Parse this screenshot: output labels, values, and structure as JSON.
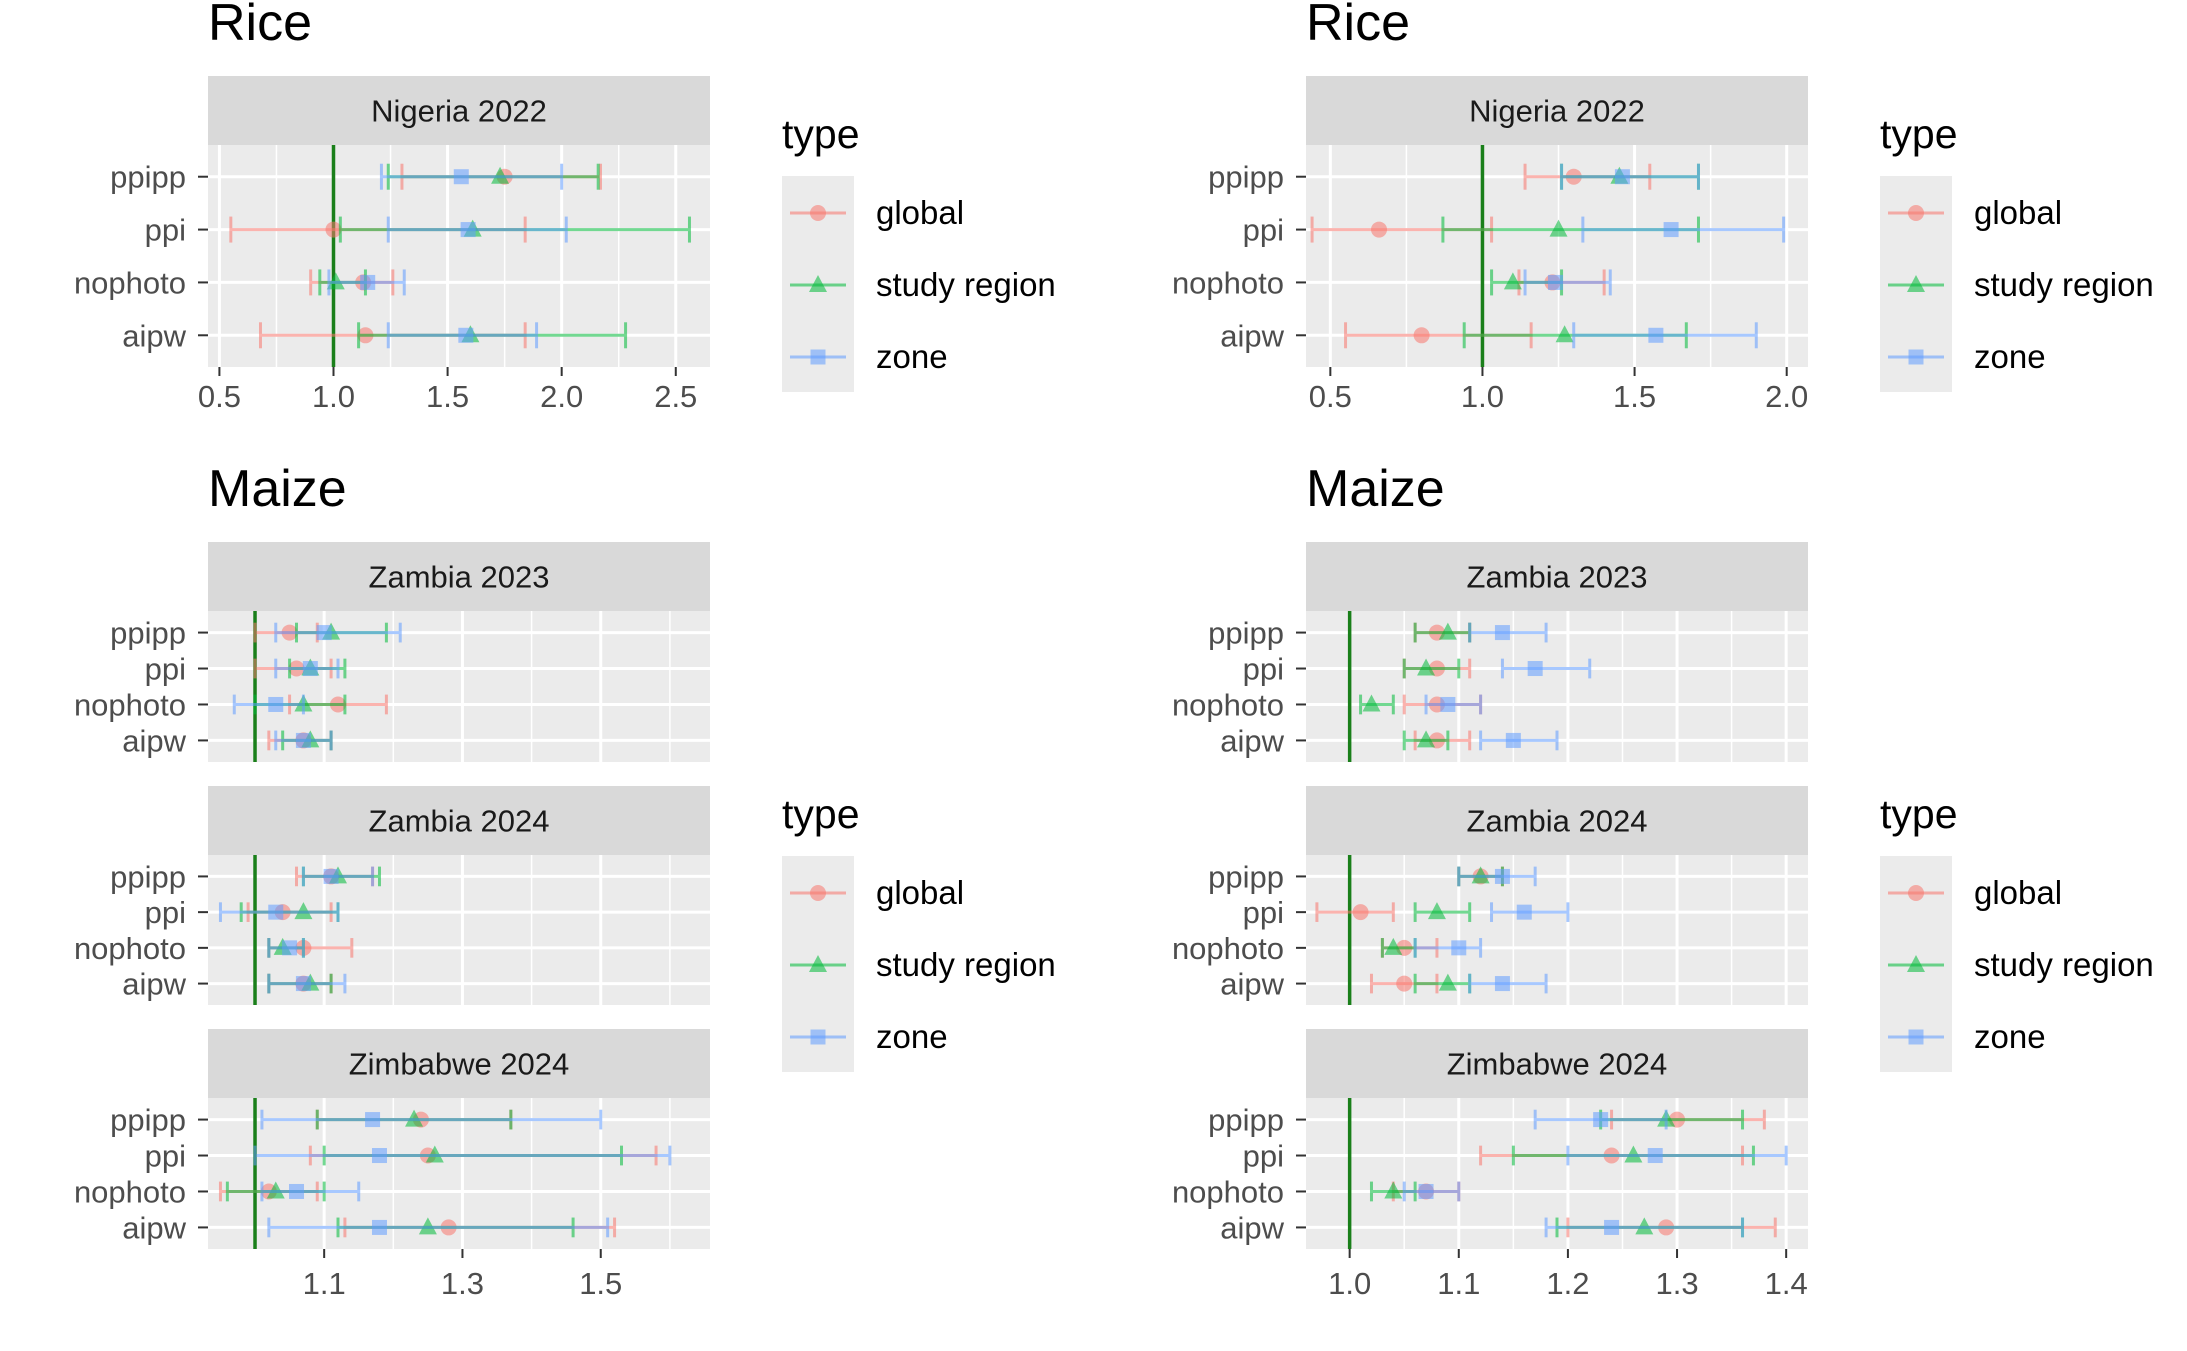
{
  "chart_data": [
    {
      "type": "forest",
      "title": "Rice",
      "legend": {
        "title": "type",
        "placement": "right"
      },
      "series": [
        {
          "name": "global",
          "color": "#F8766D",
          "marker": "circle"
        },
        {
          "name": "study region",
          "color": "#00BA38",
          "marker": "triangle"
        },
        {
          "name": "zone",
          "color": "#619CFF",
          "marker": "square"
        }
      ],
      "reference_line": 1.0,
      "xlim": [
        0.45,
        2.65
      ],
      "xticks": [
        0.5,
        1.0,
        1.5,
        2.0,
        2.5
      ],
      "xtick_labels": [
        "0.5",
        "1.0",
        "1.5",
        "2.0",
        "2.5"
      ],
      "categories": [
        "ppipp",
        "ppi",
        "nophoto",
        "aipw"
      ],
      "facets": [
        {
          "label": "Nigeria 2022",
          "rows": {
            "ppipp": {
              "global": [
                1.3,
                1.75,
                2.17
              ],
              "study region": [
                1.24,
                1.73,
                2.16
              ],
              "zone": [
                1.21,
                1.56,
                2.0
              ]
            },
            "ppi": {
              "global": [
                0.55,
                1.0,
                1.84
              ],
              "study region": [
                1.03,
                1.61,
                2.56
              ],
              "zone": [
                1.24,
                1.59,
                2.02
              ]
            },
            "nophoto": {
              "global": [
                0.9,
                1.13,
                1.26
              ],
              "study region": [
                0.94,
                1.01,
                1.14
              ],
              "zone": [
                0.98,
                1.15,
                1.31
              ]
            },
            "aipw": {
              "global": [
                0.68,
                1.14,
                1.84
              ],
              "study region": [
                1.11,
                1.6,
                2.28
              ],
              "zone": [
                1.24,
                1.58,
                1.89
              ]
            }
          }
        }
      ]
    },
    {
      "type": "forest",
      "title": "Rice",
      "legend": {
        "title": "type",
        "placement": "right"
      },
      "series": [
        {
          "name": "global",
          "color": "#F8766D",
          "marker": "circle"
        },
        {
          "name": "study region",
          "color": "#00BA38",
          "marker": "triangle"
        },
        {
          "name": "zone",
          "color": "#619CFF",
          "marker": "square"
        }
      ],
      "reference_line": 1.0,
      "xlim": [
        0.42,
        2.07
      ],
      "xticks": [
        0.5,
        1.0,
        1.5,
        2.0
      ],
      "xtick_labels": [
        "0.5",
        "1.0",
        "1.5",
        "2.0"
      ],
      "categories": [
        "ppipp",
        "ppi",
        "nophoto",
        "aipw"
      ],
      "facets": [
        {
          "label": "Nigeria 2022",
          "rows": {
            "ppipp": {
              "global": [
                1.14,
                1.3,
                1.55
              ],
              "study region": [
                1.26,
                1.45,
                1.71
              ],
              "zone": [
                1.26,
                1.46,
                1.71
              ]
            },
            "ppi": {
              "global": [
                0.44,
                0.66,
                1.03
              ],
              "study region": [
                0.87,
                1.25,
                1.71
              ],
              "zone": [
                1.33,
                1.62,
                1.99
              ]
            },
            "nophoto": {
              "global": [
                1.12,
                1.23,
                1.4
              ],
              "study region": [
                1.03,
                1.1,
                1.26
              ],
              "zone": [
                1.14,
                1.24,
                1.42
              ]
            },
            "aipw": {
              "global": [
                0.55,
                0.8,
                1.16
              ],
              "study region": [
                0.94,
                1.27,
                1.67
              ],
              "zone": [
                1.3,
                1.57,
                1.9
              ]
            }
          }
        }
      ]
    },
    {
      "type": "forest",
      "title": "Maize",
      "legend": {
        "title": "type",
        "placement": "right"
      },
      "series": [
        {
          "name": "global",
          "color": "#F8766D",
          "marker": "circle"
        },
        {
          "name": "study region",
          "color": "#00BA38",
          "marker": "triangle"
        },
        {
          "name": "zone",
          "color": "#619CFF",
          "marker": "square"
        }
      ],
      "reference_line": 1.0,
      "xlim": [
        0.932,
        1.658
      ],
      "xticks": [
        1.1,
        1.3,
        1.5
      ],
      "xtick_labels": [
        "1.1",
        "1.3",
        "1.5"
      ],
      "categories": [
        "ppipp",
        "ppi",
        "nophoto",
        "aipw"
      ],
      "facets": [
        {
          "label": "Zambia 2023",
          "rows": {
            "ppipp": {
              "global": [
                1.0,
                1.05,
                1.09
              ],
              "study region": [
                1.06,
                1.11,
                1.19
              ],
              "zone": [
                1.03,
                1.1,
                1.21
              ]
            },
            "ppi": {
              "global": [
                1.0,
                1.06,
                1.11
              ],
              "study region": [
                1.05,
                1.08,
                1.13
              ],
              "zone": [
                1.03,
                1.08,
                1.12
              ]
            },
            "nophoto": {
              "global": [
                1.05,
                1.12,
                1.19
              ],
              "study region": [
                1.0,
                1.07,
                1.13
              ],
              "zone": [
                0.97,
                1.03,
                1.07
              ]
            },
            "aipw": {
              "global": [
                1.02,
                1.07,
                1.11
              ],
              "study region": [
                1.04,
                1.08,
                1.11
              ],
              "zone": [
                1.03,
                1.07,
                1.11
              ]
            }
          }
        },
        {
          "label": "Zambia 2024",
          "rows": {
            "ppipp": {
              "global": [
                1.06,
                1.11,
                1.17
              ],
              "study region": [
                1.07,
                1.12,
                1.18
              ],
              "zone": [
                1.07,
                1.11,
                1.17
              ]
            },
            "ppi": {
              "global": [
                0.99,
                1.04,
                1.11
              ],
              "study region": [
                0.98,
                1.07,
                1.12
              ],
              "zone": [
                0.95,
                1.03,
                1.12
              ]
            },
            "nophoto": {
              "global": [
                1.02,
                1.07,
                1.14
              ],
              "study region": [
                1.02,
                1.04,
                1.07
              ],
              "zone": [
                1.02,
                1.05,
                1.07
              ]
            },
            "aipw": {
              "global": [
                1.02,
                1.07,
                1.11
              ],
              "study region": [
                1.02,
                1.08,
                1.11
              ],
              "zone": [
                1.02,
                1.07,
                1.13
              ]
            }
          }
        },
        {
          "label": "Zimbabwe 2024",
          "rows": {
            "ppipp": {
              "global": [
                1.09,
                1.24,
                1.37
              ],
              "study region": [
                1.09,
                1.23,
                1.37
              ],
              "zone": [
                1.01,
                1.17,
                1.5
              ]
            },
            "ppi": {
              "global": [
                1.08,
                1.25,
                1.58
              ],
              "study region": [
                1.1,
                1.26,
                1.53
              ],
              "zone": [
                1.0,
                1.18,
                1.6
              ]
            },
            "nophoto": {
              "global": [
                0.95,
                1.02,
                1.09
              ],
              "study region": [
                0.96,
                1.03,
                1.1
              ],
              "zone": [
                1.01,
                1.06,
                1.15
              ]
            },
            "aipw": {
              "global": [
                1.13,
                1.28,
                1.52
              ],
              "study region": [
                1.12,
                1.25,
                1.46
              ],
              "zone": [
                1.02,
                1.18,
                1.51
              ]
            }
          }
        }
      ]
    },
    {
      "type": "forest",
      "title": "Maize",
      "legend": {
        "title": "type",
        "placement": "right"
      },
      "series": [
        {
          "name": "global",
          "color": "#F8766D",
          "marker": "circle"
        },
        {
          "name": "study region",
          "color": "#00BA38",
          "marker": "triangle"
        },
        {
          "name": "zone",
          "color": "#619CFF",
          "marker": "square"
        }
      ],
      "reference_line": 1.0,
      "xlim": [
        0.96,
        1.42
      ],
      "xticks": [
        1.0,
        1.1,
        1.2,
        1.3,
        1.4
      ],
      "xtick_labels": [
        "1.0",
        "1.1",
        "1.2",
        "1.3",
        "1.4"
      ],
      "categories": [
        "ppipp",
        "ppi",
        "nophoto",
        "aipw"
      ],
      "facets": [
        {
          "label": "Zambia 2023",
          "rows": {
            "ppipp": {
              "global": [
                1.06,
                1.08,
                1.11
              ],
              "study region": [
                1.06,
                1.09,
                1.11
              ],
              "zone": [
                1.11,
                1.14,
                1.18
              ]
            },
            "ppi": {
              "global": [
                1.05,
                1.08,
                1.11
              ],
              "study region": [
                1.05,
                1.07,
                1.1
              ],
              "zone": [
                1.14,
                1.17,
                1.22
              ]
            },
            "nophoto": {
              "global": [
                1.05,
                1.08,
                1.12
              ],
              "study region": [
                1.01,
                1.02,
                1.04
              ],
              "zone": [
                1.07,
                1.09,
                1.12
              ]
            },
            "aipw": {
              "global": [
                1.06,
                1.08,
                1.11
              ],
              "study region": [
                1.05,
                1.07,
                1.09
              ],
              "zone": [
                1.12,
                1.15,
                1.19
              ]
            }
          }
        },
        {
          "label": "Zambia 2024",
          "rows": {
            "ppipp": {
              "global": [
                1.1,
                1.12,
                1.14
              ],
              "study region": [
                1.1,
                1.12,
                1.14
              ],
              "zone": [
                1.1,
                1.14,
                1.17
              ]
            },
            "ppi": {
              "global": [
                0.97,
                1.01,
                1.04
              ],
              "study region": [
                1.06,
                1.08,
                1.11
              ],
              "zone": [
                1.13,
                1.16,
                1.2
              ]
            },
            "nophoto": {
              "global": [
                1.03,
                1.05,
                1.08
              ],
              "study region": [
                1.03,
                1.04,
                1.06
              ],
              "zone": [
                1.06,
                1.1,
                1.12
              ]
            },
            "aipw": {
              "global": [
                1.02,
                1.05,
                1.08
              ],
              "study region": [
                1.06,
                1.09,
                1.11
              ],
              "zone": [
                1.11,
                1.14,
                1.18
              ]
            }
          }
        },
        {
          "label": "Zimbabwe 2024",
          "rows": {
            "ppipp": {
              "global": [
                1.24,
                1.3,
                1.38
              ],
              "study region": [
                1.23,
                1.29,
                1.36
              ],
              "zone": [
                1.17,
                1.23,
                1.29
              ]
            },
            "ppi": {
              "global": [
                1.12,
                1.24,
                1.36
              ],
              "study region": [
                1.15,
                1.26,
                1.37
              ],
              "zone": [
                1.2,
                1.28,
                1.4
              ]
            },
            "nophoto": {
              "global": [
                1.04,
                1.07,
                1.1
              ],
              "study region": [
                1.02,
                1.04,
                1.06
              ],
              "zone": [
                1.05,
                1.07,
                1.1
              ]
            },
            "aipw": {
              "global": [
                1.2,
                1.29,
                1.39
              ],
              "study region": [
                1.19,
                1.27,
                1.36
              ],
              "zone": [
                1.18,
                1.24,
                1.36
              ]
            }
          }
        }
      ]
    }
  ]
}
